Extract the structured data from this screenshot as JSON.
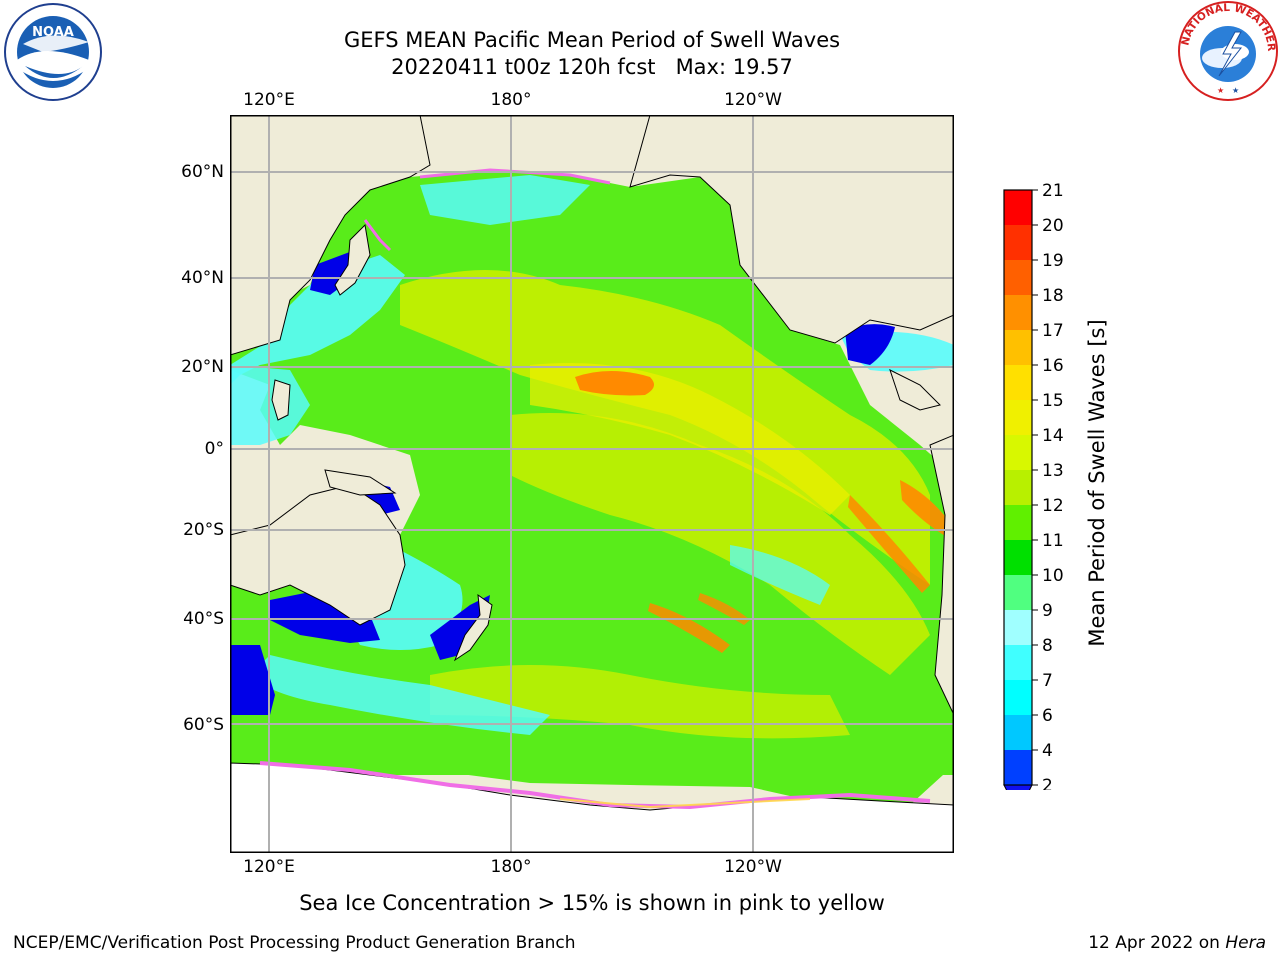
{
  "title_line1": "GEFS MEAN Pacific Mean Period of Swell Waves",
  "title_line2": "20220411 t00z 120h fcst   Max: 19.57",
  "map": {
    "lon_ticks": [
      "120°E",
      "180°",
      "120°W"
    ],
    "lat_ticks": [
      "60°N",
      "40°N",
      "20°N",
      "0°",
      "20°S",
      "40°S",
      "60°S"
    ],
    "colors": {
      "land": "#efecd8",
      "ocean_green": "#59ec1a",
      "ocean_yellowgreen": "#c8f000",
      "ocean_cyan": "#58fcfc",
      "ocean_blue": "#0000e8",
      "orange": "#ff8a00",
      "ice_pink": "#f06ee6",
      "grid": "#b0b0b0"
    }
  },
  "colorbar": {
    "title": "Mean Period of Swell Waves [s]",
    "tick_labels": [
      "21",
      "20",
      "19",
      "18",
      "17",
      "16",
      "15",
      "14",
      "13",
      "12",
      "11",
      "10",
      "9",
      "8",
      "7",
      "6",
      "4",
      "2"
    ],
    "levels": [
      2,
      4,
      6,
      7,
      8,
      9,
      10,
      11,
      12,
      13,
      14,
      15,
      16,
      17,
      18,
      19,
      20,
      21
    ],
    "colors": [
      "#0040ff",
      "#00c8ff",
      "#00ffff",
      "#40ffff",
      "#a0ffff",
      "#50ff80",
      "#00e000",
      "#60f000",
      "#b8f000",
      "#d8f800",
      "#f0f000",
      "#ffe000",
      "#ffc000",
      "#ff9000",
      "#ff6000",
      "#ff3000",
      "#ff0000"
    ],
    "under_color": "#1010f0"
  },
  "caption": "Sea Ice Concentration > 15% is shown in pink to yellow",
  "footer_left": "NCEP/EMC/Verification Post Processing Product Generation Branch",
  "footer_right_prefix": "12 Apr 2022 on ",
  "footer_right_host": "Hera",
  "logos": {
    "noaa_text": "NOAA",
    "nws_text": "NATIONAL WEATHER SERVICE"
  }
}
